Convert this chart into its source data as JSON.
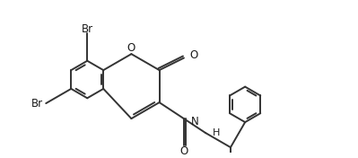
{
  "bg_color": "#ffffff",
  "line_color": "#333333",
  "line_width": 1.4,
  "font_size": 8.5,
  "xlim": [
    0,
    10.5
  ],
  "ylim": [
    0,
    4.4
  ]
}
